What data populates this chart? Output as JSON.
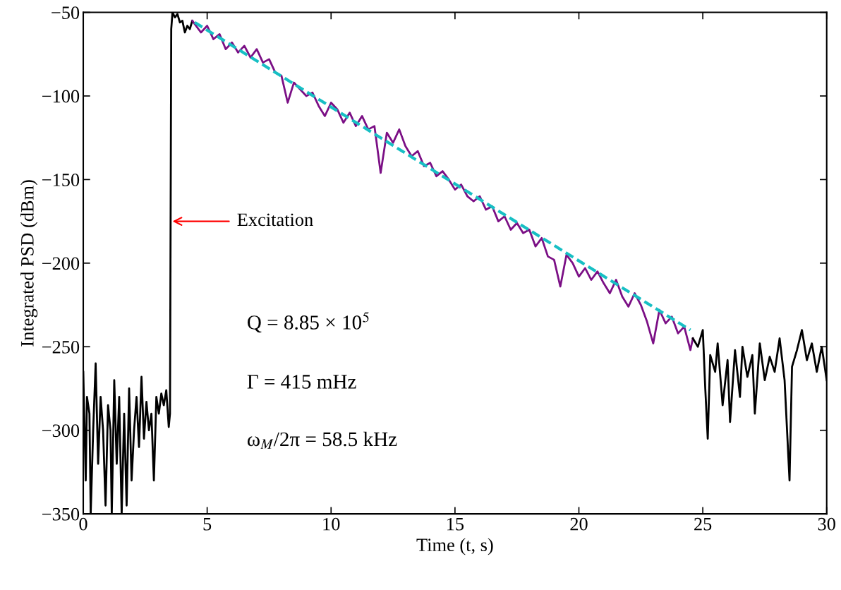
{
  "chart_data": {
    "type": "line",
    "xlabel": "Time (t, s)",
    "ylabel": "Integrated PSD (dBm)",
    "xlim": [
      0,
      30
    ],
    "xticks": [
      0,
      5,
      10,
      15,
      20,
      25,
      30
    ],
    "ylim": [
      -350,
      -50
    ],
    "yticks": [
      -350,
      -300,
      -250,
      -200,
      -150,
      -100,
      -50
    ],
    "grid": false,
    "legend": false,
    "series": [
      {
        "color": "#000000",
        "line_style": "solid",
        "x": [
          0,
          0.1,
          0.15,
          0.25,
          0.3,
          0.4,
          0.5,
          0.6,
          0.7,
          0.8,
          0.9,
          1.0,
          1.1,
          1.15,
          1.25,
          1.35,
          1.45,
          1.55,
          1.65,
          1.75,
          1.85,
          1.95,
          2.05,
          2.15,
          2.25,
          2.35,
          2.45,
          2.55,
          2.65,
          2.75,
          2.85,
          2.95,
          3.05,
          3.15,
          3.25,
          3.35,
          3.45,
          3.5,
          3.55,
          3.6,
          3.7,
          3.8,
          3.9,
          4.0,
          4.1,
          4.2,
          4.3,
          4.4
        ],
        "values": [
          -265,
          -330,
          -280,
          -290,
          -350,
          -300,
          -260,
          -320,
          -280,
          -300,
          -345,
          -285,
          -300,
          -350,
          -270,
          -320,
          -280,
          -350,
          -290,
          -345,
          -275,
          -330,
          -300,
          -280,
          -310,
          -268,
          -305,
          -283,
          -300,
          -290,
          -330,
          -280,
          -290,
          -278,
          -285,
          -276,
          -298,
          -290,
          -60,
          -50,
          -53,
          -51,
          -56,
          -55,
          -62,
          -58,
          -60,
          -55
        ]
      },
      {
        "color": "#7b0f85",
        "line_style": "solid",
        "x": [
          4.4,
          4.5,
          4.75,
          5.0,
          5.25,
          5.5,
          5.75,
          6.0,
          6.25,
          6.5,
          6.75,
          7.0,
          7.25,
          7.5,
          7.75,
          8.0,
          8.25,
          8.5,
          8.75,
          9.0,
          9.25,
          9.5,
          9.75,
          10.0,
          10.25,
          10.5,
          10.75,
          11.0,
          11.25,
          11.5,
          11.75,
          12.0,
          12.25,
          12.5,
          12.75,
          13.0,
          13.25,
          13.5,
          13.75,
          14.0,
          14.25,
          14.5,
          14.75,
          15.0,
          15.25,
          15.5,
          15.75,
          16.0,
          16.25,
          16.5,
          16.75,
          17.0,
          17.25,
          17.5,
          17.75,
          18.0,
          18.25,
          18.5,
          18.75,
          19.0,
          19.25,
          19.5,
          19.75,
          20.0,
          20.25,
          20.5,
          20.75,
          21.0,
          21.25,
          21.5,
          21.75,
          22.0,
          22.25,
          22.5,
          22.75,
          23.0,
          23.25,
          23.5,
          23.75,
          24.0,
          24.25,
          24.5,
          24.6
        ],
        "values": [
          -55,
          -57,
          -62,
          -58,
          -66,
          -63,
          -72,
          -68,
          -74,
          -70,
          -77,
          -72,
          -80,
          -78,
          -86,
          -88,
          -104,
          -92,
          -96,
          -100,
          -98,
          -106,
          -112,
          -104,
          -108,
          -116,
          -110,
          -118,
          -112,
          -120,
          -118,
          -146,
          -122,
          -128,
          -120,
          -130,
          -136,
          -133,
          -142,
          -140,
          -148,
          -145,
          -150,
          -156,
          -153,
          -160,
          -163,
          -160,
          -168,
          -166,
          -175,
          -172,
          -180,
          -176,
          -182,
          -180,
          -190,
          -185,
          -196,
          -198,
          -214,
          -195,
          -200,
          -208,
          -203,
          -210,
          -205,
          -212,
          -218,
          -210,
          -220,
          -226,
          -218,
          -225,
          -235,
          -248,
          -228,
          -236,
          -232,
          -242,
          -238,
          -252,
          -245
        ]
      },
      {
        "color": "#000000",
        "line_style": "solid",
        "x": [
          24.6,
          24.8,
          25.0,
          25.1,
          25.2,
          25.3,
          25.5,
          25.6,
          25.8,
          26.0,
          26.1,
          26.3,
          26.5,
          26.6,
          26.8,
          27.0,
          27.1,
          27.3,
          27.5,
          27.7,
          27.9,
          28.1,
          28.3,
          28.5,
          28.6,
          28.8,
          29.0,
          29.2,
          29.4,
          29.6,
          29.8,
          30.0
        ],
        "values": [
          -245,
          -250,
          -240,
          -275,
          -305,
          -255,
          -265,
          -248,
          -285,
          -258,
          -295,
          -252,
          -280,
          -250,
          -268,
          -255,
          -290,
          -248,
          -270,
          -256,
          -265,
          -245,
          -270,
          -330,
          -262,
          -252,
          -240,
          -258,
          -248,
          -265,
          -250,
          -270
        ]
      },
      {
        "color": "#17bfc4",
        "line_style": "dashed",
        "x": [
          4.5,
          24.5
        ],
        "values": [
          -56,
          -240
        ]
      }
    ],
    "annotations": [
      {
        "text": "Excitation",
        "x": 3.6,
        "y": -175
      },
      "Q = 8.85 × 10$^{5}$",
      "Γ = 415 mHz",
      "ω$_{M}$/2π = 58.5 kHz"
    ]
  }
}
